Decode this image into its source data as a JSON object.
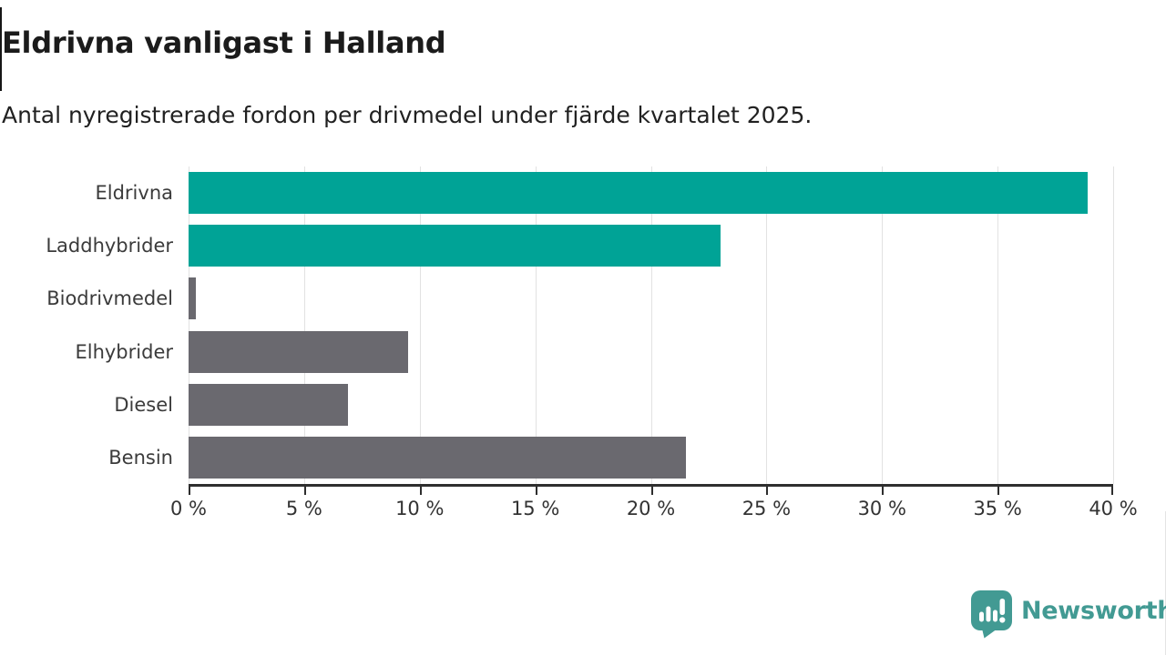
{
  "header": {
    "title": "Eldrivna vanligast i Halland",
    "subtitle": "Antal nyregistrerade fordon per drivmedel under fjärde kvartalet 2025."
  },
  "chart_data": {
    "type": "bar",
    "orientation": "horizontal",
    "title": "Eldrivna vanligast i Halland",
    "subtitle": "Antal nyregistrerade fordon per drivmedel under fjärde kvartalet 2025.",
    "categories": [
      "Eldrivna",
      "Laddhybrider",
      "Biodrivmedel",
      "Elhybrider",
      "Diesel",
      "Bensin"
    ],
    "values": [
      38.9,
      23.0,
      0.3,
      9.5,
      6.9,
      21.5
    ],
    "unit": "%",
    "xlabel": "",
    "ylabel": "",
    "xlim": [
      0,
      40
    ],
    "x_ticks": [
      0,
      5,
      10,
      15,
      20,
      25,
      30,
      35,
      40
    ],
    "x_tick_labels": [
      "0 %",
      "5 %",
      "10 %",
      "15 %",
      "20 %",
      "25 %",
      "30 %",
      "35 %",
      "40 %"
    ],
    "grid": true,
    "legend": false,
    "bar_colors": [
      "#00a396",
      "#00a396",
      "#6a696f",
      "#6a696f",
      "#6a696f",
      "#6a696f"
    ],
    "highlight_color": "#00a396",
    "default_color": "#6a696f"
  },
  "footer": {
    "brand": "Newsworthy",
    "brand_color": "#429a93"
  }
}
